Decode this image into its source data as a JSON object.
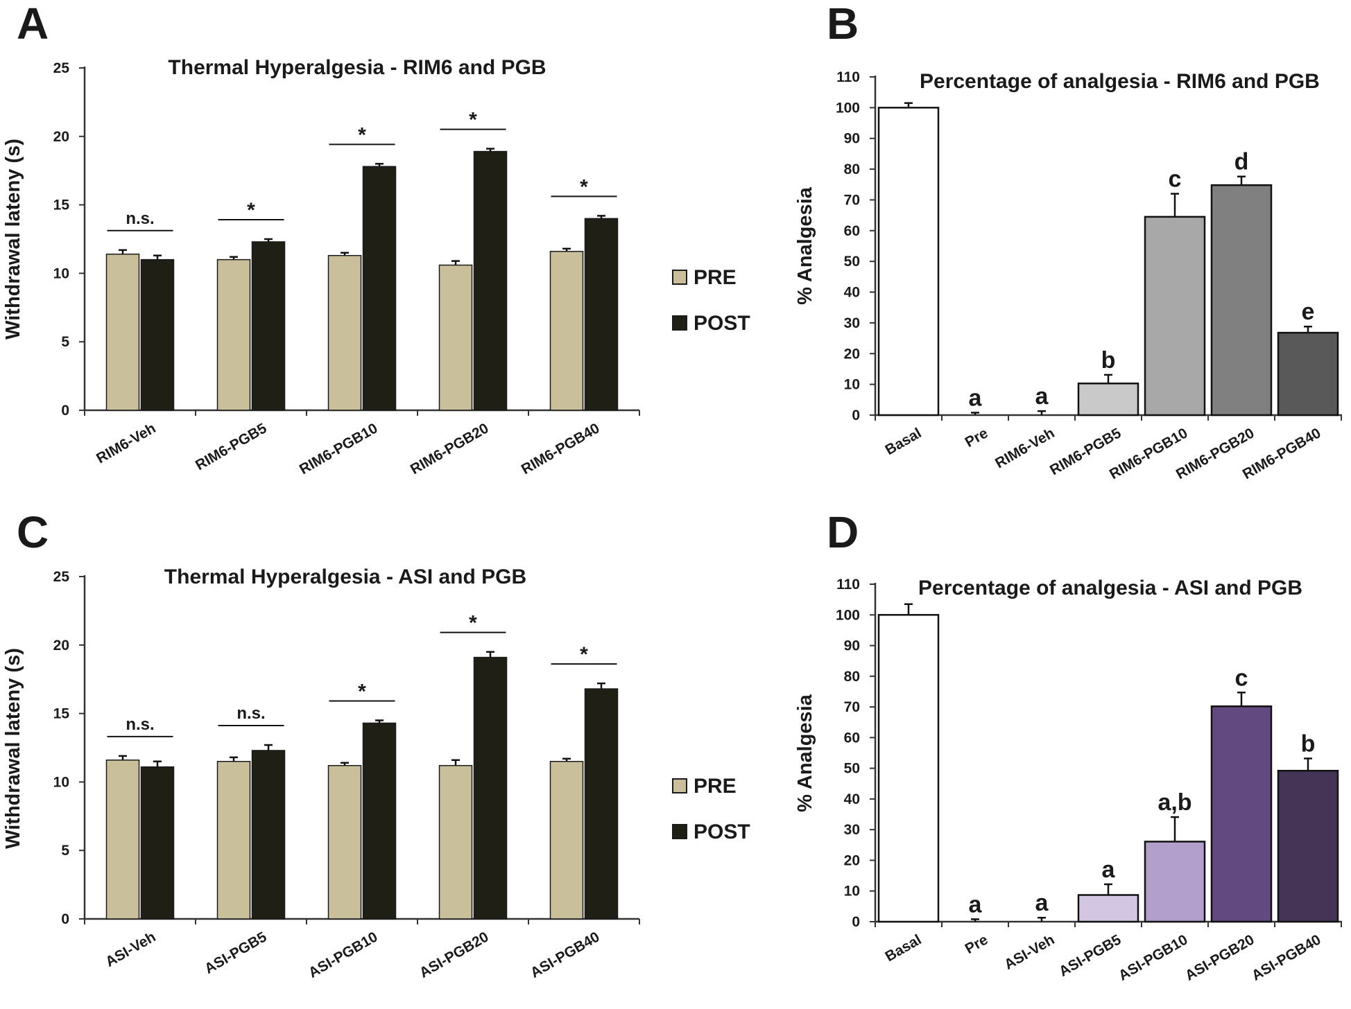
{
  "colors": {
    "pre": "#c9c09b",
    "post": "#1f1f16",
    "axis": "#333333"
  },
  "chart_data": [
    {
      "panel": "A",
      "type": "bar",
      "title": "Thermal Hyperalgesia - RIM6 and PGB",
      "ylabel": "Withdrawal lateny (s)",
      "ylim": [
        0,
        25
      ],
      "yticks": [
        "0",
        "5",
        "10",
        "15",
        "20",
        "25"
      ],
      "categories": [
        "RIM6-Veh",
        "RIM6-PGB5",
        "RIM6-PGB10",
        "RIM6-PGB20",
        "RIM6-PGB40"
      ],
      "series": [
        {
          "name": "PRE",
          "values": [
            11.4,
            11.0,
            11.3,
            10.6,
            11.6
          ],
          "errors": [
            0.3,
            0.2,
            0.2,
            0.3,
            0.2
          ]
        },
        {
          "name": "POST",
          "values": [
            11.0,
            12.3,
            17.8,
            18.9,
            14.0
          ],
          "errors": [
            0.3,
            0.2,
            0.2,
            0.2,
            0.2
          ]
        }
      ],
      "significance": [
        "n.s.",
        "*",
        "*",
        "*",
        "*"
      ],
      "legend": [
        "PRE",
        "POST"
      ]
    },
    {
      "panel": "B",
      "type": "bar",
      "title": "Percentage of analgesia - RIM6 and PGB",
      "ylabel": "% Analgesia",
      "ylim": [
        0,
        110
      ],
      "yticks": [
        "0",
        "10",
        "20",
        "30",
        "40",
        "50",
        "60",
        "70",
        "80",
        "90",
        "100",
        "110"
      ],
      "categories": [
        "Basal",
        "Pre",
        "RIM6-Veh",
        "RIM6-PGB5",
        "RIM6-PGB10",
        "RIM6-PGB20",
        "RIM6-PGB40"
      ],
      "values": [
        100,
        0,
        0,
        10.3,
        64.5,
        74.8,
        26.8
      ],
      "errors": [
        1.5,
        0.8,
        1.3,
        2.8,
        7.5,
        2.8,
        2.0
      ],
      "bar_colors": [
        "#ffffff",
        "#ffffff",
        "#ffffff",
        "#c9c9c9",
        "#a8a8a8",
        "#808080",
        "#595959"
      ],
      "letters": [
        "",
        "a",
        "a",
        "b",
        "c",
        "d",
        "e"
      ]
    },
    {
      "panel": "C",
      "type": "bar",
      "title": "Thermal Hyperalgesia - ASI and PGB",
      "ylabel": "Withdrawal lateny (s)",
      "ylim": [
        0,
        25
      ],
      "yticks": [
        "0",
        "5",
        "10",
        "15",
        "20",
        "25"
      ],
      "categories": [
        "ASI-Veh",
        "ASI-PGB5",
        "ASI-PGB10",
        "ASI-PGB20",
        "ASI-PGB40"
      ],
      "series": [
        {
          "name": "PRE",
          "values": [
            11.6,
            11.5,
            11.2,
            11.2,
            11.5
          ],
          "errors": [
            0.3,
            0.3,
            0.2,
            0.4,
            0.2
          ]
        },
        {
          "name": "POST",
          "values": [
            11.1,
            12.3,
            14.3,
            19.1,
            16.8
          ],
          "errors": [
            0.4,
            0.4,
            0.2,
            0.4,
            0.4
          ]
        }
      ],
      "significance": [
        "n.s.",
        "n.s.",
        "*",
        "*",
        "*"
      ],
      "legend": [
        "PRE",
        "POST"
      ]
    },
    {
      "panel": "D",
      "type": "bar",
      "title": "Percentage of analgesia - ASI and PGB",
      "ylabel": "% Analgesia",
      "ylim": [
        0,
        110
      ],
      "yticks": [
        "0",
        "10",
        "20",
        "30",
        "40",
        "50",
        "60",
        "70",
        "80",
        "90",
        "100",
        "110"
      ],
      "categories": [
        "Basal",
        "Pre",
        "ASI-Veh",
        "ASI-PGB5",
        "ASI-PGB10",
        "ASI-PGB20",
        "ASI-PGB40"
      ],
      "values": [
        100,
        0,
        0,
        8.7,
        26.1,
        70.2,
        49.2
      ],
      "errors": [
        3.5,
        0.8,
        1.3,
        3.5,
        8.0,
        4.5,
        4.0
      ],
      "bar_colors": [
        "#ffffff",
        "#ffffff",
        "#ffffff",
        "#d2c6e2",
        "#b39fcc",
        "#624a80",
        "#453455"
      ],
      "letters": [
        "",
        "a",
        "a",
        "a",
        "a,b",
        "c",
        "b"
      ]
    }
  ]
}
